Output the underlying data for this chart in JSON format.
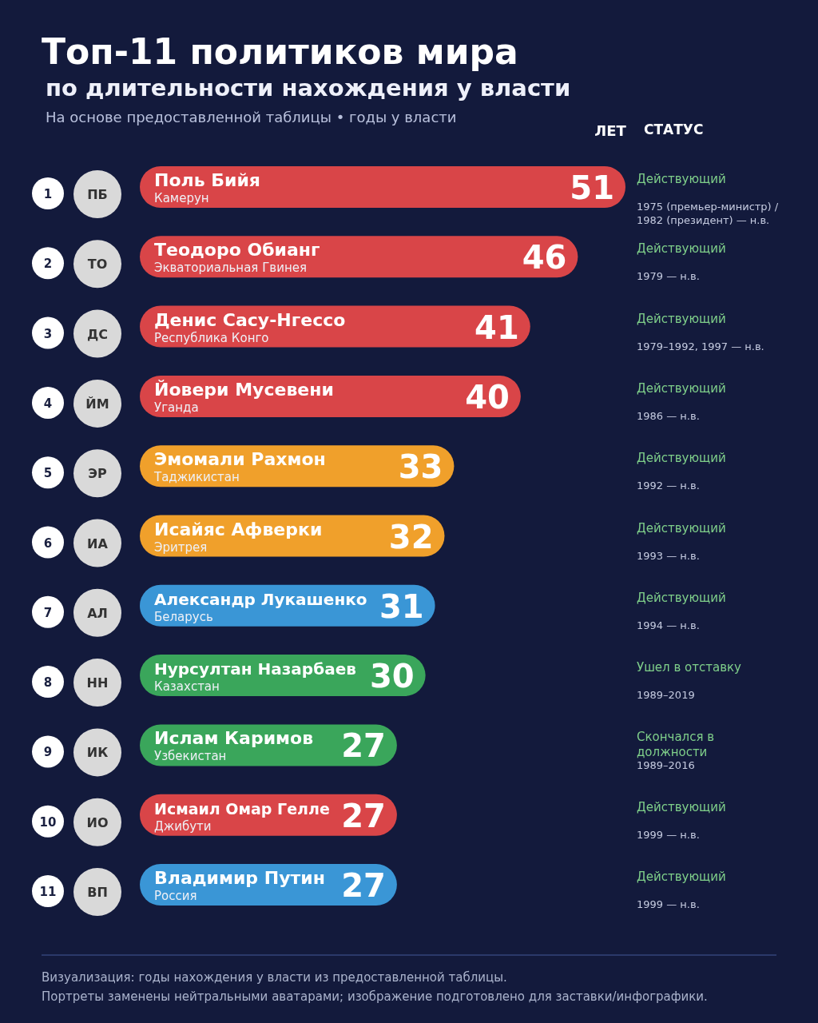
{
  "chart_data": {
    "type": "bar",
    "orientation": "horizontal",
    "title": "Топ-11 политиков мира",
    "subtitle": "по длительности нахождения у власти",
    "categories": [
      "Поль Бийя",
      "Теодоро Обианг",
      "Денис Сасу-Нгессо",
      "Йовери Мусевени",
      "Эмомали Рахмон",
      "Исайяс Афверки",
      "Александр Лукашенко",
      "Нурсултан Назарбаев",
      "Ислам Каримов",
      "Исмаил Омар Гелле",
      "Владимир Путин"
    ],
    "values": [
      51,
      46,
      41,
      40,
      33,
      32,
      31,
      30,
      27,
      27,
      27
    ],
    "colors": [
      "#d94548",
      "#d94548",
      "#d94548",
      "#d94548",
      "#f0a02b",
      "#f0a02b",
      "#3a96d6",
      "#3aa65b",
      "#3aa65b",
      "#d94548",
      "#3a96d6"
    ],
    "data_labels": true,
    "tick_labels": "y",
    "annotations": [
      "На основе предоставленной таблицы • годы у власти",
      "ЛЕТ",
      "СТАТУС",
      "1",
      "ПБ",
      "Камерун",
      "Действующий",
      "1975 (премьер-министр) / 1982 (президент) — н.в.",
      "2",
      "ТО",
      "Экваториальная Гвинея",
      "Действующий",
      "1979 — н.в.",
      "3",
      "ДС",
      "Республика Конго",
      "Действующий",
      "1979–1992, 1997 — н.в.",
      "4",
      "ЙМ",
      "Уганда",
      "Действующий",
      "1986 — н.в.",
      "5",
      "ЭР",
      "Таджикистан",
      "Действующий",
      "1992 — н.в.",
      "6",
      "ИА",
      "Эритрея",
      "Действующий",
      "1993 — н.в.",
      "7",
      "АЛ",
      "Беларусь",
      "Действующий",
      "1994 — н.в.",
      "8",
      "НН",
      "Казахстан",
      "Ушел в отставку",
      "1989–2019",
      "9",
      "ИК",
      "Узбекистан",
      "Скончался в должности",
      "1989–2016",
      "10",
      "ИО",
      "Джибути",
      "Действующий",
      "1999 — н.в.",
      "11",
      "ВП",
      "Россия",
      "Действующий",
      "1999 — н.в.",
      "Визуализация: годы нахождения у власти из предоставленной таблицы.",
      "Портреты заменены нейтральными аватарами; изображение подготовлено для заставки/инфографики."
    ]
  }
}
